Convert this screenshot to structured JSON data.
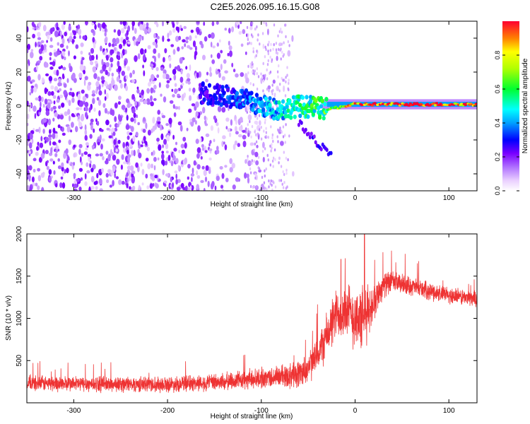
{
  "title": "C2E5.2026.095.16.15.G08",
  "chart_data": [
    {
      "type": "heatmap",
      "name": "spectrogram",
      "xlabel": "Height of straight line (km)",
      "ylabel": "Frequency (Hz)",
      "xlim": [
        -350,
        130
      ],
      "ylim": [
        -50,
        50
      ],
      "xticks": [
        -300,
        -200,
        -100,
        0,
        100
      ],
      "yticks": [
        -40,
        -20,
        0,
        20,
        40
      ],
      "colorbar": {
        "label": "Normalized spectral amplitude",
        "range": [
          0.0,
          1.0
        ],
        "ticks": [
          "0.0",
          "0.2",
          "0.4",
          "0.6",
          "0.8"
        ]
      },
      "features": {
        "noise_region_x": [
          -350,
          -75
        ],
        "signal_track": {
          "x": [
            -165,
            -140,
            -120,
            -100,
            -80,
            -60,
            -40,
            -30,
            -20,
            0,
            20,
            60,
            100,
            130
          ],
          "freq": [
            8,
            6,
            4,
            0,
            -2,
            0,
            -1,
            -2,
            -1,
            1,
            1,
            1,
            1,
            1
          ],
          "amplitude": [
            0.25,
            0.3,
            0.35,
            0.4,
            0.45,
            0.5,
            0.55,
            0.6,
            0.7,
            0.85,
            0.95,
            1.0,
            0.95,
            0.9
          ]
        },
        "diverging_branch": {
          "x": [
            -60,
            -40,
            -25
          ],
          "freq": [
            -10,
            -22,
            -28
          ]
        }
      }
    },
    {
      "type": "line",
      "name": "snr",
      "xlabel": "Height of straight line (km)",
      "ylabel": "SNR (10 * v/v)",
      "xlim": [
        -350,
        130
      ],
      "ylim": [
        0,
        2000
      ],
      "xticks": [
        -300,
        -200,
        -100,
        0,
        100
      ],
      "yticks": [
        500,
        1000,
        1500,
        2000
      ],
      "color": "#ee3333",
      "envelope": {
        "x": [
          -350,
          -300,
          -250,
          -200,
          -150,
          -100,
          -80,
          -60,
          -50,
          -40,
          -30,
          -20,
          -10,
          0,
          10,
          20,
          30,
          40,
          60,
          80,
          100,
          130
        ],
        "mean": [
          230,
          225,
          220,
          220,
          240,
          290,
          310,
          340,
          420,
          560,
          800,
          1050,
          1100,
          1000,
          1000,
          1200,
          1400,
          1430,
          1380,
          1320,
          1270,
          1230
        ],
        "spread": [
          110,
          110,
          110,
          110,
          120,
          140,
          160,
          200,
          220,
          260,
          320,
          360,
          380,
          450,
          450,
          250,
          180,
          150,
          130,
          120,
          120,
          110
        ]
      },
      "peaks": [
        {
          "x": 10,
          "value": 2000
        },
        {
          "x": -15,
          "value": 1700
        }
      ]
    }
  ]
}
